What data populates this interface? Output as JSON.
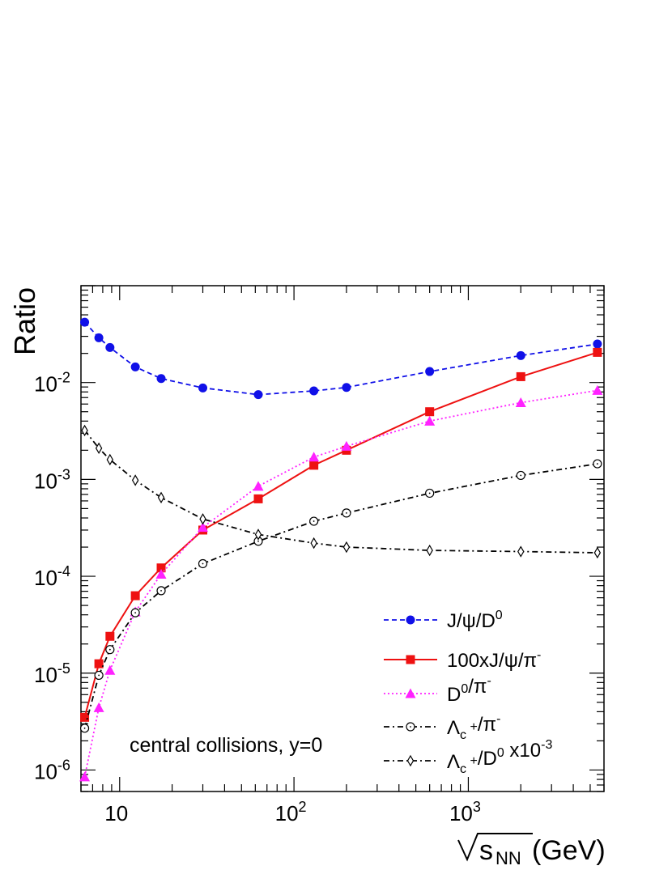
{
  "chart_data": {
    "type": "line",
    "x_scale": "log",
    "y_scale": "log",
    "xlim": [
      6,
      6000
    ],
    "ylim": [
      6e-07,
      0.1
    ],
    "xlabel": "(GeV)",
    "xlabel_sub": "NN",
    "xlabel_var": "s",
    "ylabel": "Ratio",
    "annotation": "central collisions, y=0",
    "x_tick_labels": [
      {
        "value": 10,
        "base": "10",
        "exp": ""
      },
      {
        "value": 100,
        "base": "10",
        "exp": "2"
      },
      {
        "value": 1000,
        "base": "10",
        "exp": "3"
      }
    ],
    "y_tick_labels": [
      {
        "value": 0.01,
        "base": "10",
        "exp": "-2"
      },
      {
        "value": 0.001,
        "base": "10",
        "exp": "-3"
      },
      {
        "value": 0.0001,
        "base": "10",
        "exp": "-4"
      },
      {
        "value": 1e-05,
        "base": "10",
        "exp": "-5"
      },
      {
        "value": 1e-06,
        "base": "10",
        "exp": "-6"
      }
    ],
    "legend_position": "bottom-right",
    "x": [
      6.3,
      7.6,
      8.8,
      12.3,
      17.3,
      30,
      62.4,
      130,
      200,
      600,
      2000,
      5500
    ],
    "series": [
      {
        "label_parts": [
          {
            "t": "J/ψ/D",
            "s": ""
          },
          {
            "t": "0",
            "s": "sup"
          }
        ],
        "color": "#1010e8",
        "marker": "filled-circle",
        "line": "dashed",
        "values": [
          0.042,
          0.029,
          0.023,
          0.0145,
          0.011,
          0.0088,
          0.0075,
          0.0082,
          0.0089,
          0.013,
          0.019,
          0.025
        ]
      },
      {
        "label_parts": [
          {
            "t": "100xJ/ψ/π",
            "s": ""
          },
          {
            "t": "-",
            "s": "sup"
          }
        ],
        "color": "#ee1111",
        "marker": "filled-square",
        "line": "solid",
        "values": [
          3.5e-06,
          1.25e-05,
          2.4e-05,
          6.3e-05,
          0.000122,
          0.0003,
          0.00063,
          0.0014,
          0.002,
          0.005,
          0.0115,
          0.0205
        ]
      },
      {
        "label_parts": [
          {
            "t": "D",
            "s": ""
          },
          {
            "t": "0",
            "s": "sup"
          },
          {
            "t": "/π",
            "s": ""
          },
          {
            "t": "-",
            "s": "sup"
          }
        ],
        "color": "#ff22ff",
        "marker": "filled-triangle",
        "line": "dotted",
        "values": [
          8.5e-07,
          4.4e-06,
          1.07e-05,
          4.3e-05,
          0.000105,
          0.00032,
          0.00085,
          0.0017,
          0.0022,
          0.004,
          0.0062,
          0.0083
        ]
      },
      {
        "label_parts": [
          {
            "t": "Λ",
            "s": ""
          },
          {
            "t": "c",
            "s": "sub"
          },
          {
            "t": " +",
            "s": "sup"
          },
          {
            "t": "/π",
            "s": ""
          },
          {
            "t": "-",
            "s": "sup"
          }
        ],
        "color": "#000000",
        "marker": "open-circle",
        "line": "dash-dot",
        "values": [
          2.7e-06,
          9.5e-06,
          1.75e-05,
          4.2e-05,
          7.1e-05,
          0.000135,
          0.00023,
          0.00037,
          0.00045,
          0.00072,
          0.0011,
          0.00145
        ]
      },
      {
        "label_parts": [
          {
            "t": "Λ",
            "s": ""
          },
          {
            "t": "c",
            "s": "sub"
          },
          {
            "t": " +",
            "s": "sup"
          },
          {
            "t": "/D",
            "s": ""
          },
          {
            "t": "0",
            "s": "sup"
          },
          {
            "t": " x10",
            "s": ""
          },
          {
            "t": "-3",
            "s": "sup"
          }
        ],
        "color": "#000000",
        "marker": "open-diamond",
        "line": "dash-dot",
        "values": [
          0.0032,
          0.0021,
          0.0016,
          0.00098,
          0.00065,
          0.00039,
          0.00027,
          0.00022,
          0.0002,
          0.000185,
          0.00018,
          0.000175
        ]
      }
    ]
  }
}
